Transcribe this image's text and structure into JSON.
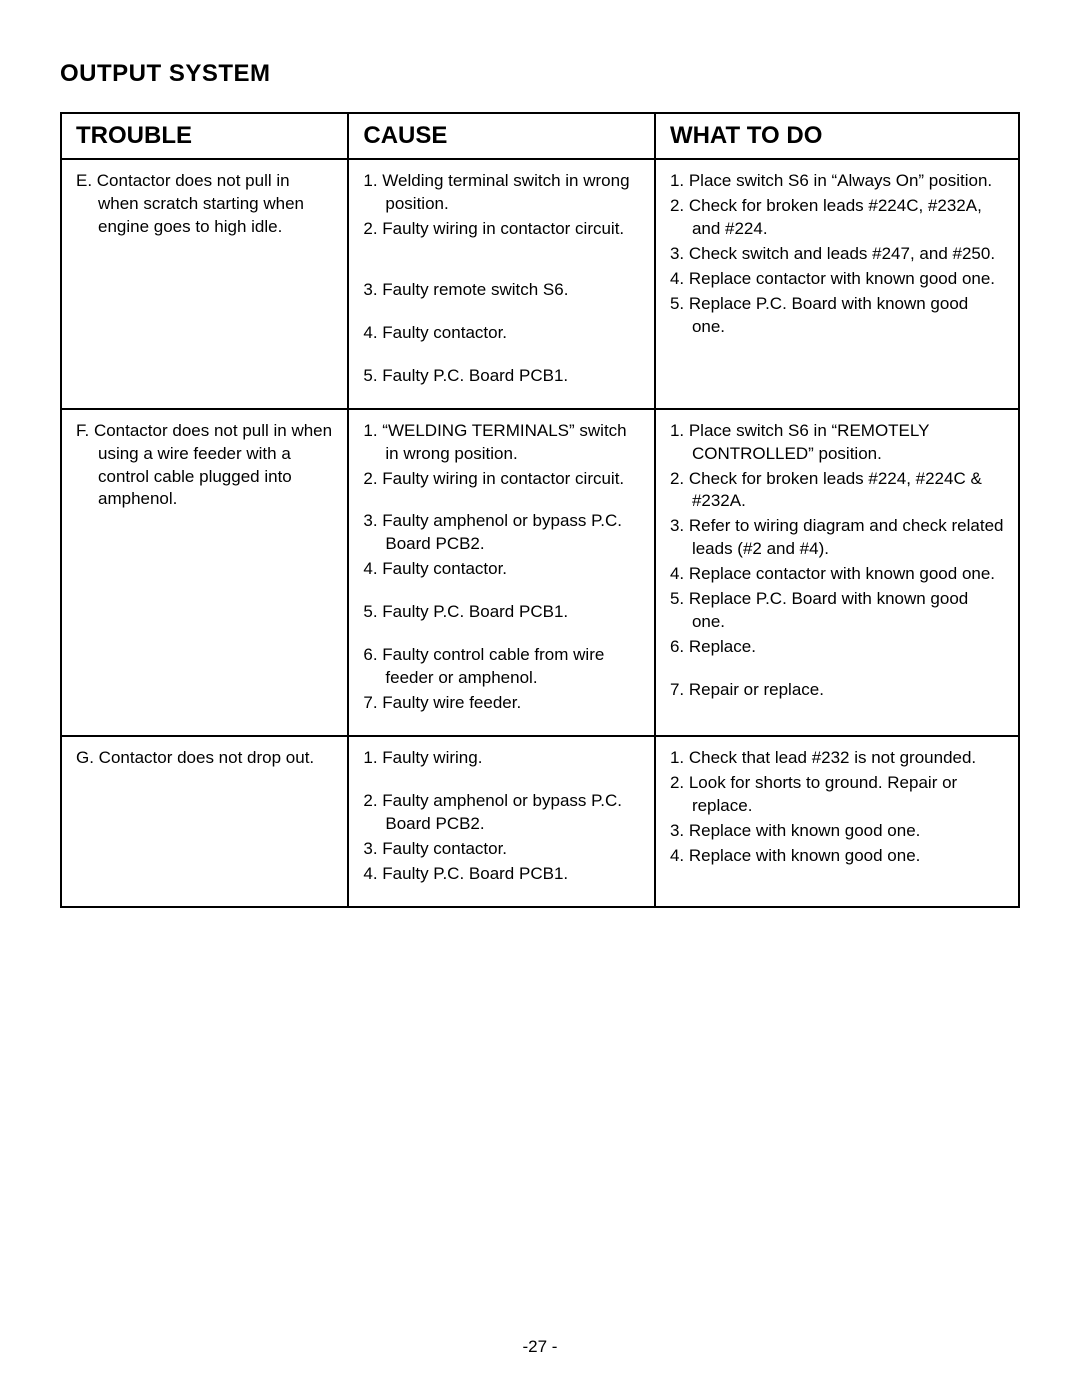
{
  "section_title": "OUTPUT SYSTEM",
  "page_number": "-27 -",
  "table": {
    "headers": {
      "trouble": "TROUBLE",
      "cause": "CAUSE",
      "action": "WHAT TO DO"
    },
    "rows": [
      {
        "trouble": [
          "E. Contactor does not pull in when scratch starting when engine goes to high idle."
        ],
        "cause": [
          "1. Welding terminal switch in wrong position.",
          "2. Faulty wiring in contactor circuit.",
          "[gap]",
          "3. Faulty remote switch S6.",
          "[gap-h]",
          "4. Faulty contactor.",
          "[gap-h]",
          "5. Faulty P.C. Board PCB1."
        ],
        "action": [
          "1. Place switch S6 in “Always On” position.",
          "2. Check for broken leads #224C, #232A, and #224.",
          "3. Check switch and leads #247, and #250.",
          "4. Replace contactor with known good one.",
          "5. Replace P.C. Board with known good one."
        ]
      },
      {
        "trouble": [
          "F. Contactor does not pull in when using a wire feeder with a control cable plugged into amphenol."
        ],
        "cause": [
          "1. “WELDING TERMINALS” switch in wrong position.",
          "2. Faulty wiring in contactor circuit.",
          "[gap-h]",
          "3. Faulty amphenol or bypass P.C. Board PCB2.",
          "4. Faulty contactor.",
          "[gap-h]",
          "5. Faulty P.C. Board PCB1.",
          "[gap-h]",
          "6. Faulty control cable from wire feeder or amphenol.",
          "7. Faulty wire feeder."
        ],
        "action": [
          "1. Place switch S6 in “REMOTELY CONTROLLED” position.",
          "2. Check for broken leads #224, #224C & #232A.",
          "3. Refer to wiring diagram and check related leads (#2 and #4).",
          "4. Replace contactor with known good one.",
          "5. Replace P.C. Board with known good one.",
          "6. Replace.",
          "[gap-h]",
          "7. Repair or replace."
        ]
      },
      {
        "trouble": [
          "G. Contactor does not drop out."
        ],
        "cause": [
          "1. Faulty wiring.",
          "[gap-h]",
          "2. Faulty amphenol or bypass P.C. Board PCB2.",
          "3. Faulty contactor.",
          "4. Faulty P.C. Board PCB1."
        ],
        "action": [
          "1. Check that lead #232 is not grounded.",
          "2. Look for shorts to ground.  Repair or replace.",
          "3. Replace with known good one.",
          "4. Replace with known good one."
        ]
      }
    ]
  }
}
